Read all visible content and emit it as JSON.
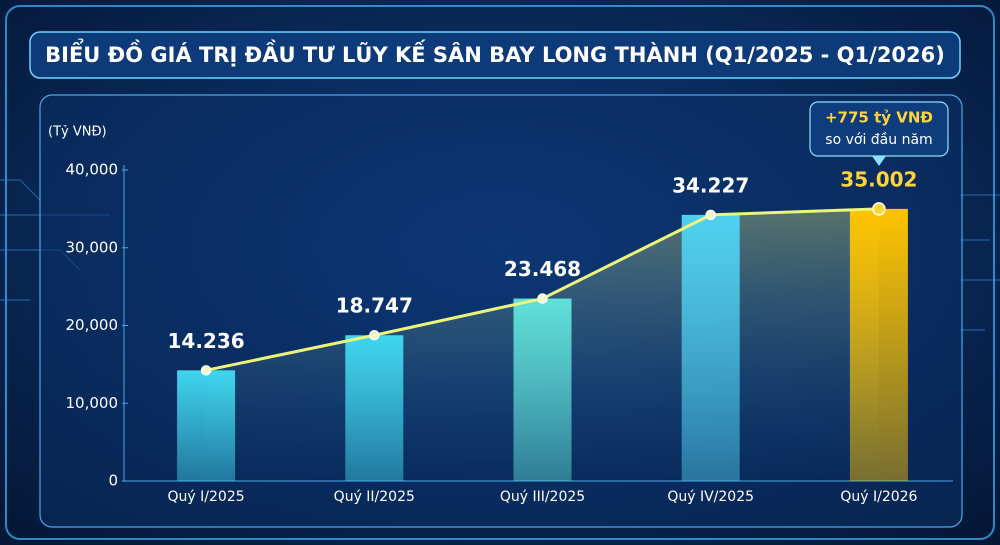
{
  "chart_data": {
    "type": "bar",
    "title": "BIỂU ĐỒ GIÁ TRỊ ĐẦU TƯ LŨY KẾ SÂN BAY LONG THÀNH (Q1/2025 - Q1/2026)",
    "y_label": "(Tỷ VNĐ)",
    "categories": [
      "Quý I/2025",
      "Quý II/2025",
      "Quý III/2025",
      "Quý IV/2025",
      "Quý I/2026"
    ],
    "values": [
      14236,
      18747,
      23468,
      34227,
      35002
    ],
    "value_labels": [
      "14.236",
      "18.747",
      "23.468",
      "34.227",
      "35.002"
    ],
    "colors": [
      "#3fd6ee",
      "#3fd6ee",
      "#5fe0d8",
      "#4fd0f0",
      "#ffc400"
    ],
    "line_color": "#eaf57a",
    "ylim": [
      0,
      40000
    ],
    "yticks": [
      0,
      {
        "value": 10000,
        "label": "10,000"
      },
      {
        "value": 20000,
        "label": "20,000"
      },
      {
        "value": 30000,
        "label": "30,000"
      },
      {
        "value": 40000,
        "label": "40,000"
      }
    ],
    "grid": false,
    "annotation": [
      "+775 tỷ VNĐ",
      "so với đầu năm"
    ]
  }
}
